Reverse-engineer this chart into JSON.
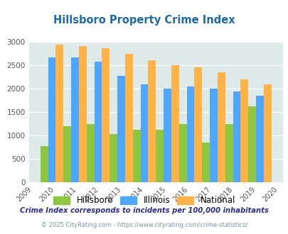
{
  "title": "Hillsboro Property Crime Index",
  "plot_years": [
    2010,
    2011,
    2012,
    2013,
    2014,
    2015,
    2016,
    2017,
    2018,
    2019
  ],
  "hillsboro": [
    775,
    1200,
    1250,
    1030,
    1120,
    1120,
    1250,
    855,
    1250,
    1630
  ],
  "illinois": [
    2670,
    2670,
    2580,
    2280,
    2090,
    2000,
    2050,
    2010,
    1950,
    1850
  ],
  "national": [
    2950,
    2920,
    2870,
    2750,
    2610,
    2500,
    2460,
    2360,
    2200,
    2100
  ],
  "xtick_labels": [
    "2009",
    "2010",
    "2011",
    "2012",
    "2013",
    "2014",
    "2015",
    "2016",
    "2017",
    "2018",
    "2019",
    "2020"
  ],
  "hillsboro_color": "#8dc63f",
  "illinois_color": "#4da6ff",
  "national_color": "#ffb347",
  "bg_color": "#deeaea",
  "ylim": [
    0,
    3000
  ],
  "yticks": [
    0,
    500,
    1000,
    1500,
    2000,
    2500,
    3000
  ],
  "footnote1": "Crime Index corresponds to incidents per 100,000 inhabitants",
  "footnote2": "© 2025 CityRating.com - https://www.cityrating.com/crime-statistics/",
  "title_color": "#1a6bad",
  "footnote1_color": "#2c2c8c",
  "footnote2_color": "#7799aa"
}
